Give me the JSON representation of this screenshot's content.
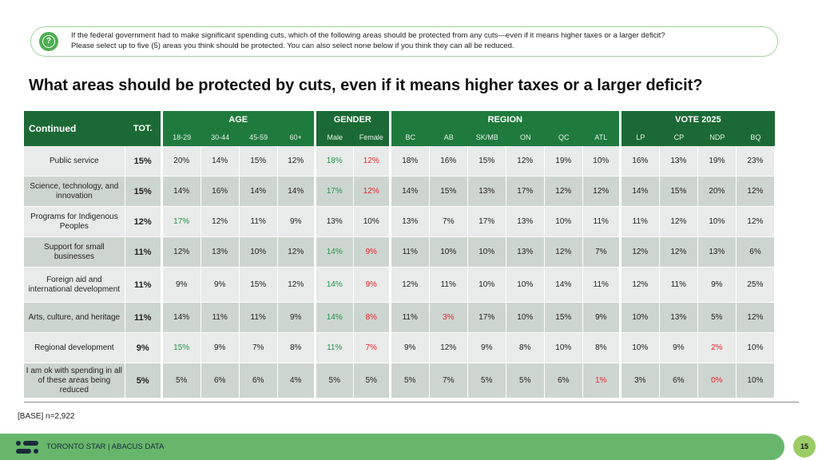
{
  "question": {
    "icon": "question-chat-icon",
    "line1": "If the federal government had to make significant spending cuts, which of the following areas should be protected from any cuts—even if it means higher taxes or a larger deficit?",
    "line2": "Please select up to five (5) areas you think should be protected.  You can also select none below if you think they can all be reduced."
  },
  "title": "What areas should be protected by cuts, even if it means higher taxes or a larger deficit?",
  "table": {
    "corner_label": "Continued",
    "tot_label": "TOT.",
    "groups": [
      {
        "label": "AGE",
        "columns": [
          "18-29",
          "30-44",
          "45-59",
          "60+"
        ]
      },
      {
        "label": "GENDER",
        "columns": [
          "Male",
          "Female"
        ]
      },
      {
        "label": "REGION",
        "columns": [
          "BC",
          "AB",
          "SK/MB",
          "ON",
          "QC",
          "ATL"
        ]
      },
      {
        "label": "VOTE 2025",
        "columns": [
          "LP",
          "CP",
          "NDP",
          "BQ"
        ]
      }
    ],
    "rows": [
      {
        "label": "Public service",
        "tot": "15%",
        "values": [
          "20%",
          "14%",
          "15%",
          "12%",
          "18%",
          "12%",
          "18%",
          "16%",
          "15%",
          "12%",
          "19%",
          "10%",
          "16%",
          "13%",
          "19%",
          "23%"
        ],
        "flags": [
          "",
          "",
          "",
          "",
          "hi",
          "lo",
          "",
          "",
          "",
          "",
          "",
          "",
          "",
          "",
          "",
          ""
        ]
      },
      {
        "label": "Science, technology, and innovation",
        "tot": "15%",
        "values": [
          "14%",
          "16%",
          "14%",
          "14%",
          "17%",
          "12%",
          "14%",
          "15%",
          "13%",
          "17%",
          "12%",
          "12%",
          "14%",
          "15%",
          "20%",
          "12%"
        ],
        "flags": [
          "",
          "",
          "",
          "",
          "hi",
          "lo",
          "",
          "",
          "",
          "",
          "",
          "",
          "",
          "",
          "",
          ""
        ]
      },
      {
        "label": "Programs for Indigenous Peoples",
        "tot": "12%",
        "values": [
          "17%",
          "12%",
          "11%",
          "9%",
          "13%",
          "10%",
          "13%",
          "7%",
          "17%",
          "13%",
          "10%",
          "11%",
          "11%",
          "12%",
          "10%",
          "12%"
        ],
        "flags": [
          "hi",
          "",
          "",
          "",
          "",
          "",
          "",
          "",
          "",
          "",
          "",
          "",
          "",
          "",
          "",
          ""
        ]
      },
      {
        "label": "Support for small businesses",
        "tot": "11%",
        "values": [
          "12%",
          "13%",
          "10%",
          "12%",
          "14%",
          "9%",
          "11%",
          "10%",
          "10%",
          "13%",
          "12%",
          "7%",
          "12%",
          "12%",
          "13%",
          "6%"
        ],
        "flags": [
          "",
          "",
          "",
          "",
          "hi",
          "lo",
          "",
          "",
          "",
          "",
          "",
          "",
          "",
          "",
          "",
          ""
        ]
      },
      {
        "label": "Foreign aid and international development",
        "tot": "11%",
        "values": [
          "9%",
          "9%",
          "15%",
          "12%",
          "14%",
          "9%",
          "12%",
          "11%",
          "10%",
          "10%",
          "14%",
          "11%",
          "12%",
          "11%",
          "9%",
          "25%"
        ],
        "flags": [
          "",
          "",
          "",
          "",
          "hi",
          "lo",
          "",
          "",
          "",
          "",
          "",
          "",
          "",
          "",
          "",
          ""
        ]
      },
      {
        "label": "Arts, culture, and heritage",
        "tot": "11%",
        "values": [
          "14%",
          "11%",
          "11%",
          "9%",
          "14%",
          "8%",
          "11%",
          "3%",
          "17%",
          "10%",
          "15%",
          "9%",
          "10%",
          "13%",
          "5%",
          "12%"
        ],
        "flags": [
          "",
          "",
          "",
          "",
          "hi",
          "lo",
          "",
          "lo",
          "",
          "",
          "",
          "",
          "",
          "",
          "",
          ""
        ]
      },
      {
        "label": "Regional development",
        "tot": "9%",
        "values": [
          "15%",
          "9%",
          "7%",
          "8%",
          "11%",
          "7%",
          "9%",
          "12%",
          "9%",
          "8%",
          "10%",
          "8%",
          "10%",
          "9%",
          "2%",
          "10%"
        ],
        "flags": [
          "hi",
          "",
          "",
          "",
          "hi",
          "lo",
          "",
          "",
          "",
          "",
          "",
          "",
          "",
          "",
          "lo",
          ""
        ]
      },
      {
        "label": "I am ok with spending in all of these areas being reduced",
        "tot": "5%",
        "values": [
          "5%",
          "6%",
          "6%",
          "4%",
          "5%",
          "5%",
          "5%",
          "7%",
          "5%",
          "5%",
          "6%",
          "1%",
          "3%",
          "6%",
          "0%",
          "10%"
        ],
        "flags": [
          "",
          "",
          "",
          "",
          "",
          "",
          "",
          "",
          "",
          "",
          "",
          "lo",
          "",
          "",
          "lo",
          ""
        ]
      }
    ]
  },
  "base": "[BASE] n=2,922",
  "footer": {
    "logo": "abacus-logo-icon",
    "text": "TORONTO STAR  |  ABACUS DATA",
    "page_number": "15"
  },
  "colors": {
    "header_green": "#1f7a3e",
    "high_green": "#22954b",
    "low_red": "#e8262b",
    "footer_green": "#67b66b",
    "page_badge": "#9ccc65"
  }
}
